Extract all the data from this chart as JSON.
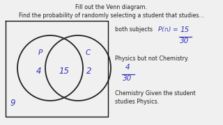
{
  "title_line1": "Fill out the Venn diagram.",
  "title_line2": "Find the probability of randomly selecting a student that studies...",
  "circle_P_label": "P",
  "circle_C_label": "C",
  "value_left": "4",
  "value_center": "15",
  "value_right": "2",
  "value_outside": "9",
  "both_label": "both subjects",
  "both_formula": "P(∩) =",
  "both_num": "15",
  "both_den": "30",
  "phys_label": "Physics but not Chemistry.",
  "phys_num": "4",
  "phys_den": "30",
  "chem_line1": "Chemistry Given the student",
  "chem_line2": "studies Physics.",
  "venn_color": "#222222",
  "handwriting_color": "#3333bb",
  "bg_color": "#f0f0f0",
  "text_color": "#222222",
  "rect_color": "#111111"
}
